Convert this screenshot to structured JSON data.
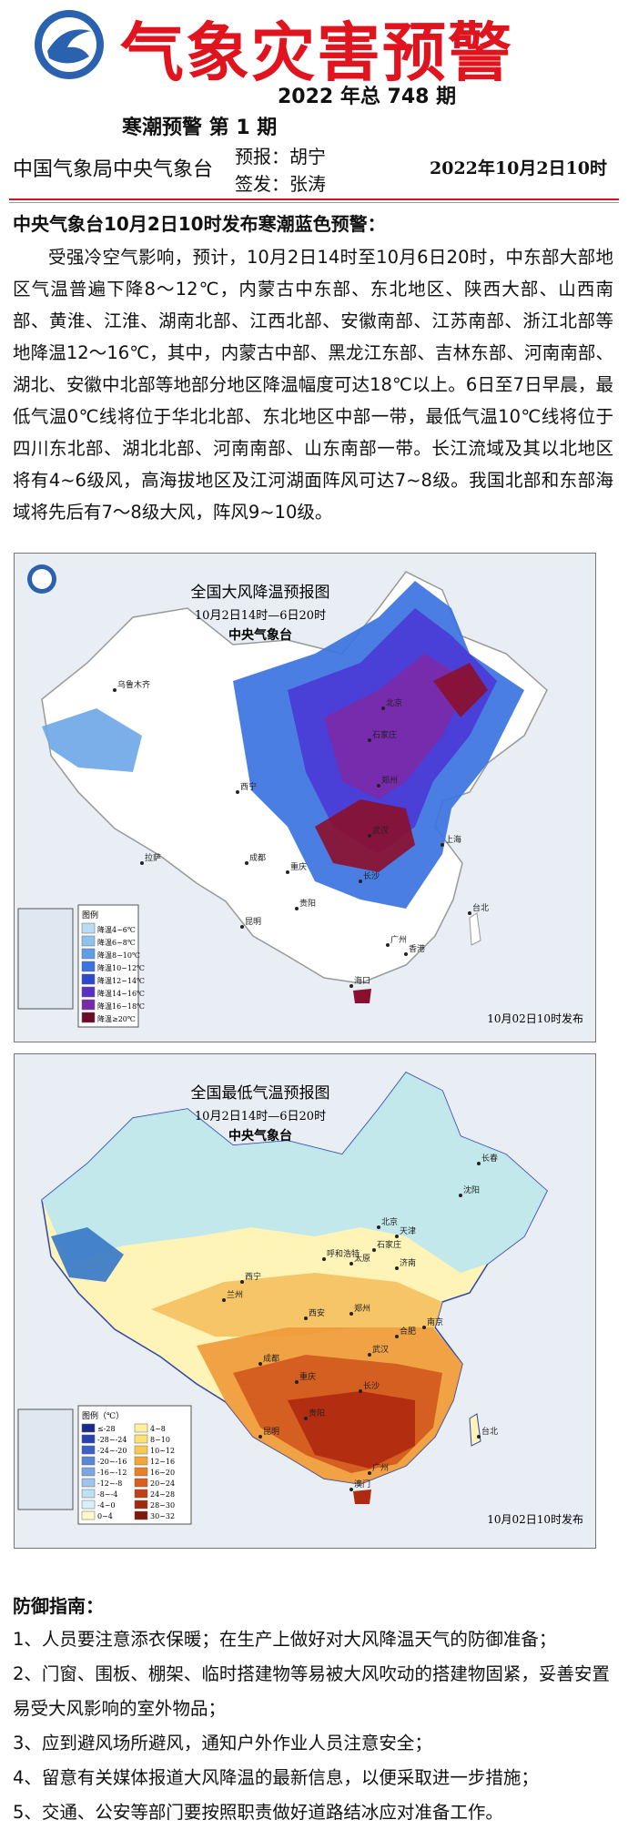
{
  "header": {
    "title": "气象灾害预警",
    "issue": "2022 年总 748 期",
    "subtitle": "寒潮预警 第 1 期",
    "agency": "中国气象局中央气象台",
    "forecaster": "预报：胡宁",
    "issuer": "签发：张涛",
    "datetime": "2022年10月2日10时"
  },
  "alert": {
    "heading": "中央气象台10月2日10时发布寒潮蓝色预警：",
    "body": "受强冷空气影响，预计，10月2日14时至10月6日20时，中东部大部地区气温普遍下降8～12℃，内蒙古中东部、东北地区、陕西大部、山西南部、黄淮、江淮、湖南北部、江西北部、安徽南部、江苏南部、浙江北部等地降温12～16℃，其中，内蒙古中部、黑龙江东部、吉林东部、河南南部、湖北、安徽中北部等地部分地区降温幅度可达18℃以上。6日至7日早晨，最低气温0℃线将位于华北北部、东北地区中部一带，最低气温10℃线将位于四川东北部、湖北北部、河南南部、山东南部一带。长江流域及其以北地区将有4~6级风，高海拔地区及江河湖面阵风可达7~8级。我国北部和东部海域将先后有7～8级大风，阵风9~10级。"
  },
  "maps": [
    {
      "title": "全国大风降温预报图",
      "period": "10月2日14时—6日20时",
      "agency": "中央气象台",
      "legend_title": "图例",
      "legend": [
        "降温4~6℃",
        "降温6~8℃",
        "降温8~10℃",
        "降温10~12℃",
        "降温12~14℃",
        "降温14~16℃",
        "降温16~18℃",
        "降温≥20℃"
      ],
      "published": "10月02日10时发布",
      "cities": [
        "乌鲁木齐",
        "拉萨",
        "西宁",
        "成都",
        "重庆",
        "贵阳",
        "昆明",
        "北京",
        "石家庄",
        "郑州",
        "武汉",
        "长沙",
        "广州",
        "香港",
        "海口",
        "台北",
        "上海"
      ]
    },
    {
      "title": "全国最低气温预报图",
      "period": "10月2日14时—6日20时",
      "agency": "中央气象台",
      "legend_title": "图例（℃）",
      "legend": [
        "≤-28",
        "-28~-24",
        "-24~-20",
        "-20~-16",
        "-16~-12",
        "-12~-8",
        "-8~-4",
        "-4~0",
        "0~4",
        "4~8",
        "8~10",
        "10~12",
        "12~16",
        "16~20",
        "20~24",
        "24~28",
        "28~30",
        "30~32"
      ],
      "published": "10月02日10时发布",
      "cities": [
        "呼和浩特",
        "北京",
        "天津",
        "石家庄",
        "太原",
        "济南",
        "西宁",
        "兰州",
        "西安",
        "郑州",
        "南京",
        "合肥",
        "武汉",
        "成都",
        "重庆",
        "长沙",
        "贵阳",
        "昆明",
        "广州",
        "澳门",
        "台北",
        "沈阳",
        "长春"
      ]
    }
  ],
  "guide": {
    "heading": "防御指南：",
    "items": [
      "1、人员要注意添衣保暖；在生产上做好对大风降温天气的防御准备；",
      "2、门窗、围板、棚架、临时搭建物等易被大风吹动的搭建物固紧，妥善安置易受大风影响的室外物品；",
      "3、应到避风场所避风，通知户外作业人员注意安全；",
      "4、留意有关媒体报道大风降温的最新信息，以便采取进一步措施；",
      "5、交通、公安等部门要按照职责做好道路结冰应对准备工作。"
    ]
  }
}
